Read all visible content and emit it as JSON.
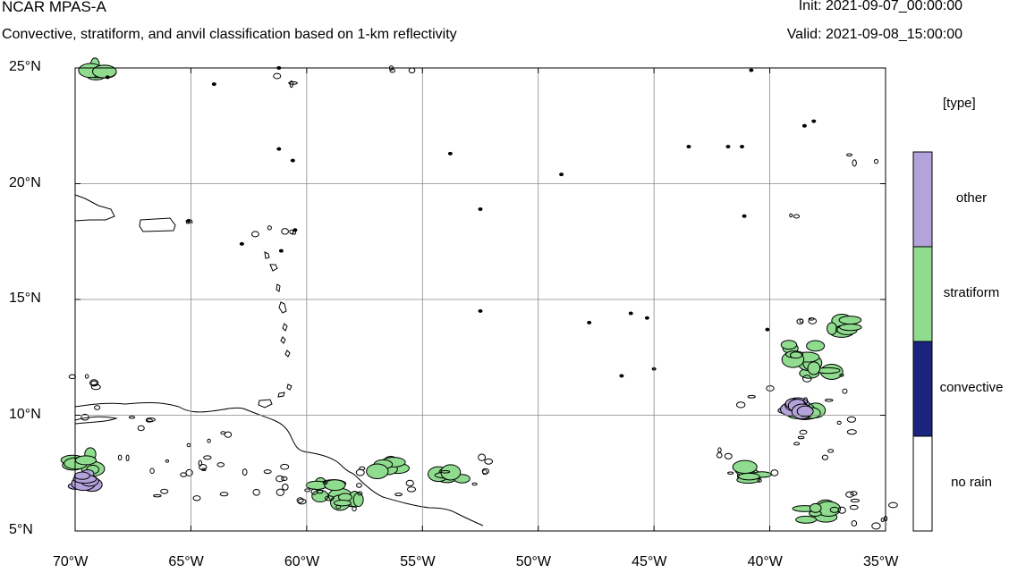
{
  "header": {
    "title": "NCAR MPAS-A",
    "subtitle": "Convective, stratiform, and anvil classification based on 1-km reflectivity",
    "init": "Init: 2021-09-07_00:00:00",
    "valid": "Valid: 2021-09-08_15:00:00"
  },
  "map": {
    "lon_range": [
      -70,
      -35
    ],
    "lat_range": [
      5,
      25
    ],
    "lon_ticks": [
      {
        "value": -70,
        "label": "70°W"
      },
      {
        "value": -65,
        "label": "65°W"
      },
      {
        "value": -60,
        "label": "60°W"
      },
      {
        "value": -55,
        "label": "55°W"
      },
      {
        "value": -50,
        "label": "50°W"
      },
      {
        "value": -45,
        "label": "45°W"
      },
      {
        "value": -40,
        "label": "40°W"
      },
      {
        "value": -35,
        "label": "35°W"
      }
    ],
    "lat_ticks": [
      {
        "value": 25,
        "label": "25°N"
      },
      {
        "value": 20,
        "label": "20°N"
      },
      {
        "value": 15,
        "label": "15°N"
      },
      {
        "value": 10,
        "label": "10°N"
      },
      {
        "value": 5,
        "label": "5°N"
      }
    ],
    "grid": true,
    "colors": {
      "convective": "#1a237e",
      "stratiform": "#8fdc8f",
      "other": "#b3a3da",
      "no_rain": "#ffffff",
      "contour": "#000000",
      "grid": "#888888"
    },
    "coastlines": [
      "South America north coast",
      "Trinidad and Tobago",
      "Lesser Antilles",
      "Puerto Rico",
      "Hispaniola"
    ],
    "precip_regions": [
      {
        "lon": -68.9,
        "lat": 24.9,
        "type": "stratiform"
      },
      {
        "lon": -53.8,
        "lat": 7.3,
        "type": "stratiform"
      },
      {
        "lon": -56.5,
        "lat": 7.8,
        "type": "stratiform"
      },
      {
        "lon": -59.0,
        "lat": 6.8,
        "type": "stratiform"
      },
      {
        "lon": -58.0,
        "lat": 6.5,
        "type": "stratiform"
      },
      {
        "lon": -69.8,
        "lat": 8.0,
        "type": "stratiform"
      },
      {
        "lon": -38.5,
        "lat": 10.0,
        "type": "stratiform"
      },
      {
        "lon": -37.8,
        "lat": 12.0,
        "type": "stratiform"
      },
      {
        "lon": -38.6,
        "lat": 12.7,
        "type": "stratiform"
      },
      {
        "lon": -39.0,
        "lat": 10.5,
        "type": "other"
      },
      {
        "lon": -69.8,
        "lat": 7.2,
        "type": "other"
      },
      {
        "lon": -40.7,
        "lat": 7.5,
        "type": "stratiform"
      },
      {
        "lon": -37.0,
        "lat": 13.8,
        "type": "stratiform"
      },
      {
        "lon": -38.0,
        "lat": 5.8,
        "type": "stratiform"
      }
    ]
  },
  "legend": {
    "title": "[type]",
    "items": [
      {
        "label": "other",
        "color": "#b3a3da"
      },
      {
        "label": "stratiform",
        "color": "#8fdc8f"
      },
      {
        "label": "convective",
        "color": "#1a237e"
      },
      {
        "label": "no rain",
        "color": "#ffffff"
      }
    ]
  }
}
